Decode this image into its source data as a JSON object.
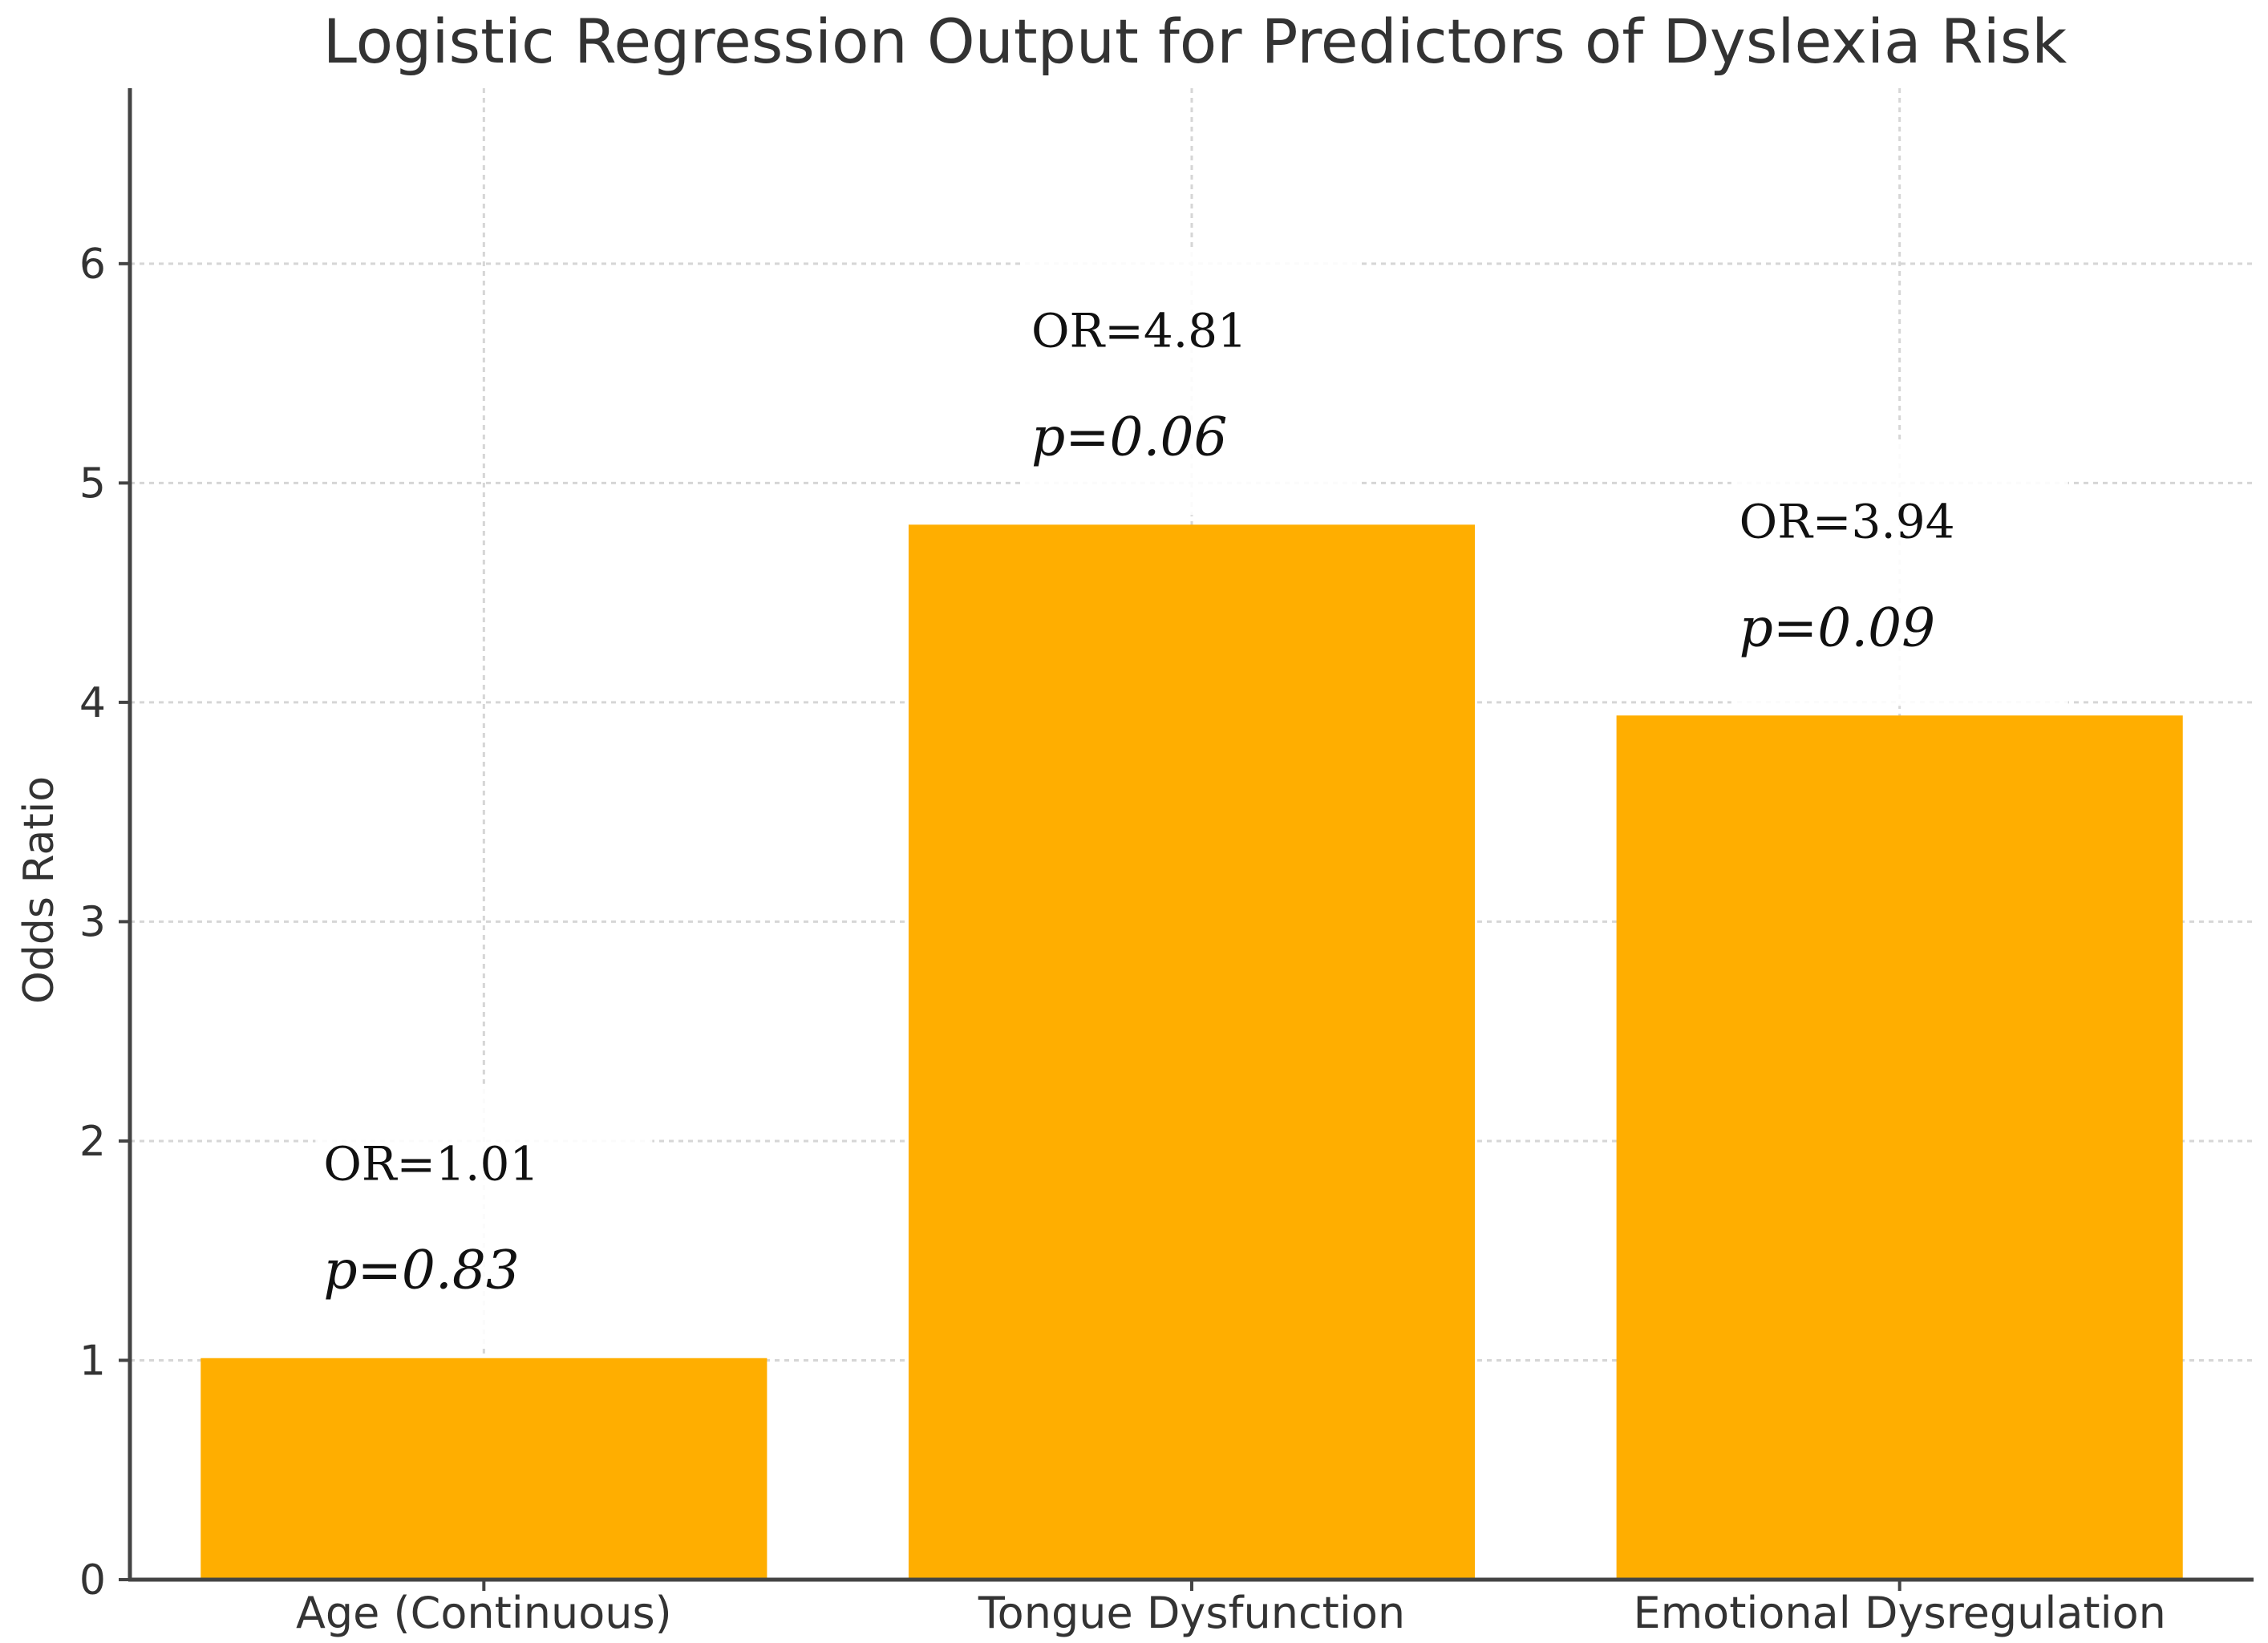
{
  "chart_data": {
    "type": "bar",
    "title": "Logistic Regression Output for Predictors of Dyslexia Risk",
    "xlabel": "",
    "ylabel": "Odds Ratio",
    "categories": [
      "Age (Continuous)",
      "Tongue Dysfunction",
      "Emotional Dysregulation"
    ],
    "values": [
      1.01,
      4.81,
      3.94
    ],
    "annotations": [
      {
        "or": "OR=1.01",
        "p": "p=0.83"
      },
      {
        "or": "OR=4.81",
        "p": "p=0.06"
      },
      {
        "or": "OR=3.94",
        "p": "p=0.09"
      }
    ],
    "yticks": [
      0,
      1,
      2,
      3,
      4,
      5,
      6
    ],
    "ylim": [
      0,
      6.8
    ],
    "grid": true,
    "bar_color": "#FFAE00"
  }
}
